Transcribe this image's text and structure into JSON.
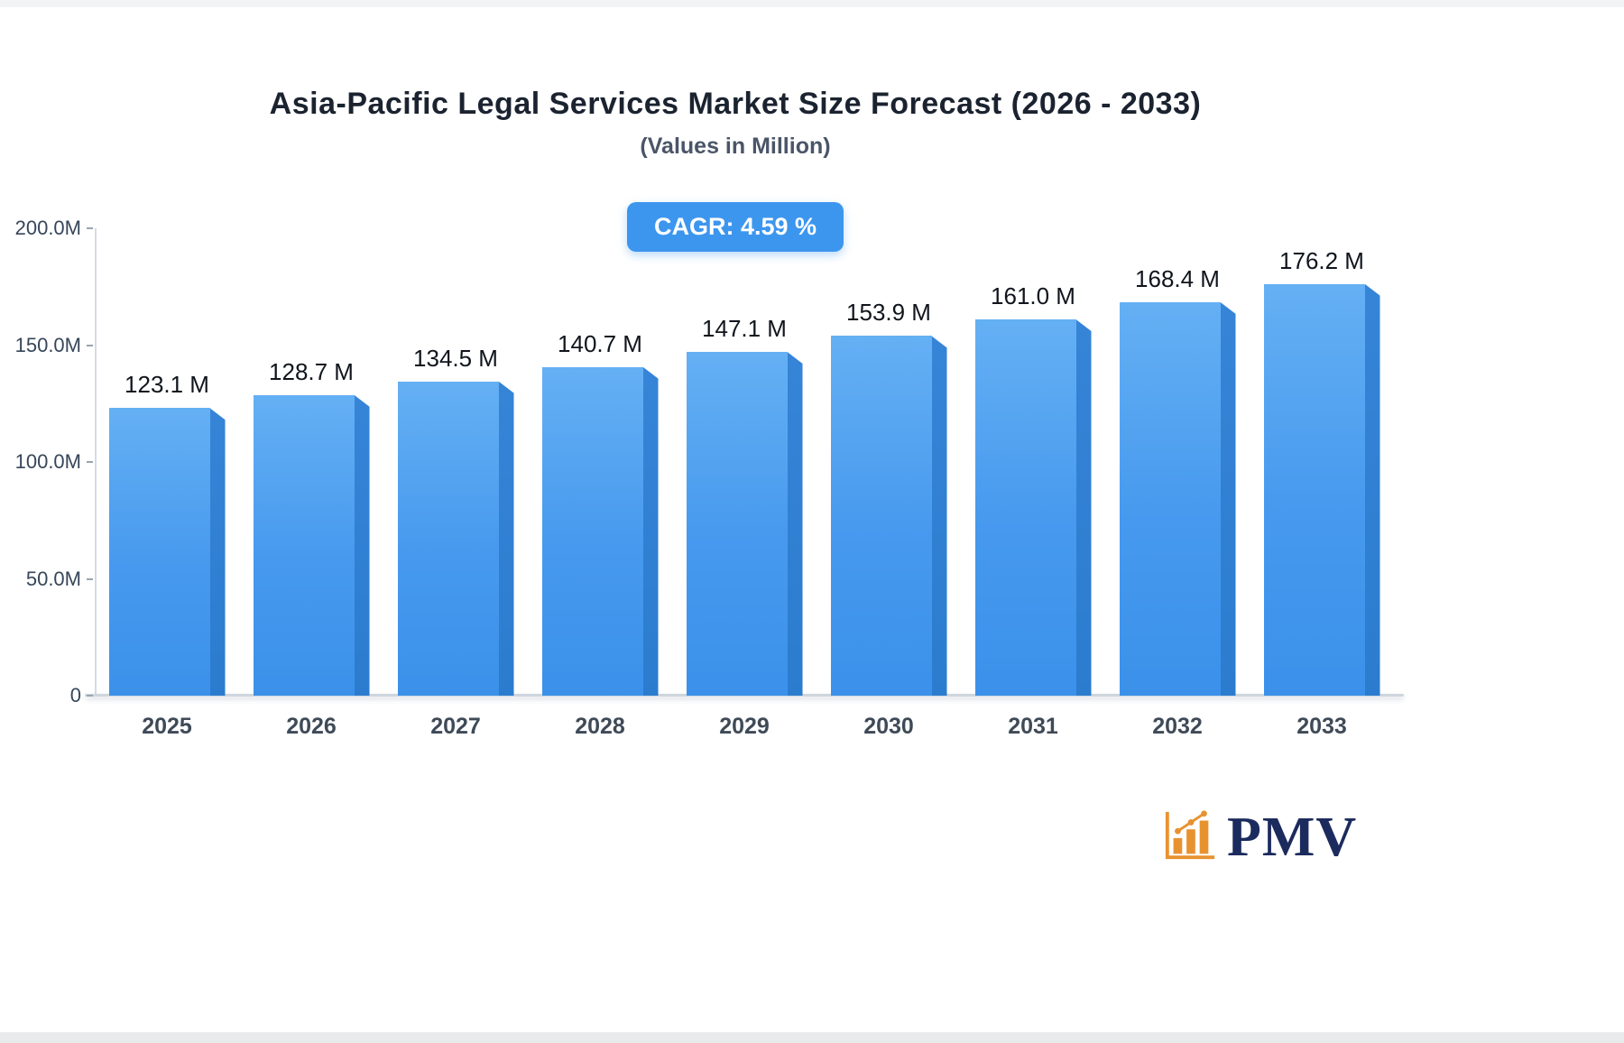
{
  "chart_data": {
    "type": "bar",
    "title": "Asia-Pacific Legal Services Market Size Forecast (2026 - 2033)",
    "subtitle": "(Values in Million)",
    "cagr_badge": "CAGR: 4.59 %",
    "categories": [
      "2025",
      "2026",
      "2027",
      "2028",
      "2029",
      "2030",
      "2031",
      "2032",
      "2033"
    ],
    "values": [
      123.1,
      128.7,
      134.5,
      140.7,
      147.1,
      153.9,
      161.0,
      168.4,
      176.2
    ],
    "bar_labels": [
      "123.1 M",
      "128.7 M",
      "134.5 M",
      "140.7 M",
      "147.1 M",
      "153.9 M",
      "161.0 M",
      "168.4 M",
      "176.2 M"
    ],
    "xlabel": "",
    "ylabel": "",
    "ylim": [
      0,
      200
    ],
    "yticks": [
      {
        "value": 0,
        "label": "0"
      },
      {
        "value": 50,
        "label": "50.0M"
      },
      {
        "value": 100,
        "label": "100.0M"
      },
      {
        "value": 150,
        "label": "150.0M"
      },
      {
        "value": 200,
        "label": "200.0M"
      }
    ],
    "grid": false,
    "legend": false,
    "colors": {
      "bar_face": "#4699ee",
      "bar_side": "#2b7ccf",
      "badge_bg": "#3d96ee",
      "badge_text": "#ffffff"
    }
  },
  "branding": {
    "logo_text": "PMV",
    "logo_text_color": "#1c2b5e",
    "logo_icon": "bar-chart-trend-icon",
    "logo_icon_color": "#e8922f"
  }
}
